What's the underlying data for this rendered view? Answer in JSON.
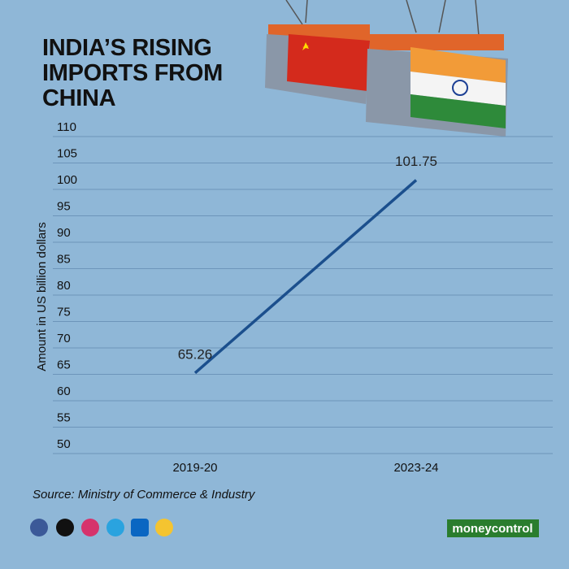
{
  "chart_data": {
    "type": "line",
    "title": "INDIA’S RISING IMPORTS FROM CHINA",
    "y_label": "Amount in US billion dollars",
    "categories": [
      "2019-20",
      "2023-24"
    ],
    "values": [
      65.26,
      101.75
    ],
    "color": "#1b4f8d",
    "ylim": [
      50,
      110
    ],
    "yticks": [
      50,
      55,
      60,
      65,
      70,
      75,
      80,
      85,
      90,
      95,
      100,
      105,
      110
    ],
    "grid": true,
    "source": "Source: Ministry of Commerce & Industry"
  },
  "brand": "moneycontrol"
}
